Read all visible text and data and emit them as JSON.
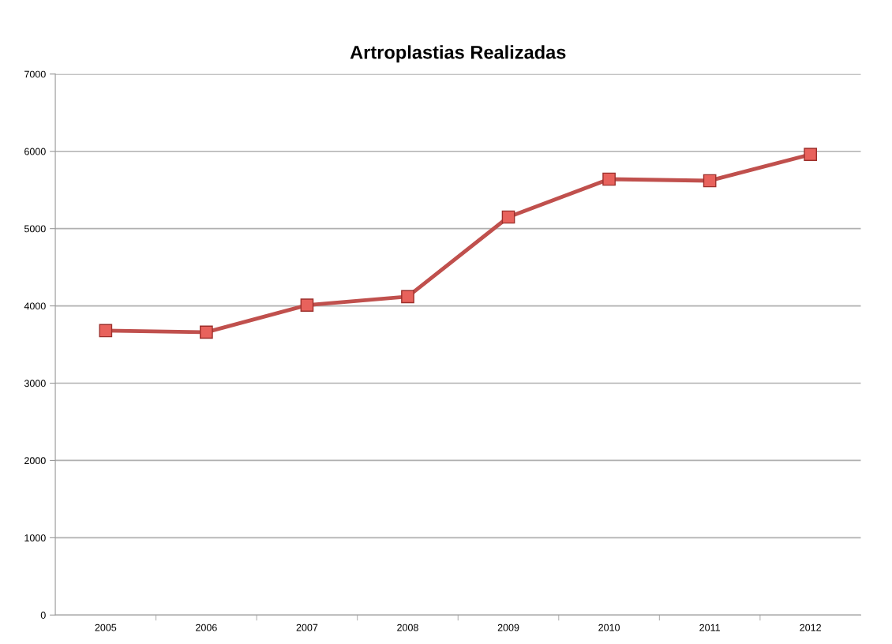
{
  "chart_data": {
    "type": "line",
    "title": "Artroplastias Realizadas",
    "categories": [
      "2005",
      "2006",
      "2007",
      "2008",
      "2009",
      "2010",
      "2011",
      "2012"
    ],
    "series": [
      {
        "color": "#c0504d",
        "values": [
          3680,
          3660,
          4010,
          4120,
          5150,
          5640,
          5620,
          5960
        ]
      }
    ],
    "ylim": [
      0,
      7000
    ],
    "yticks": [
      0,
      1000,
      2000,
      3000,
      4000,
      5000,
      6000,
      7000
    ],
    "grid": "y",
    "marker": "square",
    "line_style": "solid"
  }
}
